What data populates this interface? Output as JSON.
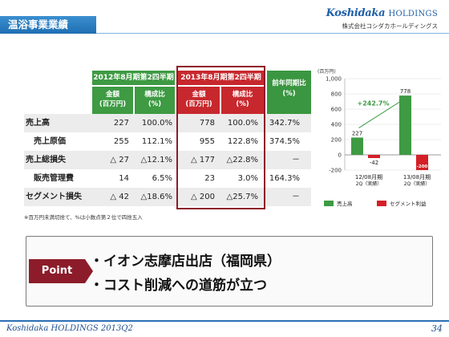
{
  "header": {
    "title": "温浴事業業績",
    "logo_main": "Koshidaka",
    "logo_holdings": "HOLDINGS",
    "logo_sub": "株式会社コシダカホールディングス"
  },
  "table": {
    "group_2012": "2012年8月期第2四半期",
    "group_2013": "2013年8月期第2四半期",
    "yoy_header": "前年同期比\n(%)",
    "amount_header": "金額\n(百万円)",
    "ratio_header": "構成比\n(%)",
    "rows": [
      {
        "label": "売上高",
        "a2012": "227",
        "r2012": "100.0%",
        "a2013": "778",
        "r2013": "100.0%",
        "yoy": "342.7%"
      },
      {
        "label": "売上原価",
        "a2012": "255",
        "r2012": "112.1%",
        "a2013": "955",
        "r2013": "122.8%",
        "yoy": "374.5%"
      },
      {
        "label": "売上総損失",
        "a2012": "△ 27",
        "r2012": "△12.1%",
        "a2013": "△ 177",
        "r2013": "△22.8%",
        "yoy": "－"
      },
      {
        "label": "販売管理費",
        "a2012": "14",
        "r2012": "6.5%",
        "a2013": "23",
        "r2013": "3.0%",
        "yoy": "164.3%"
      },
      {
        "label": "セグメント損失",
        "a2012": "△ 42",
        "r2012": "△18.6%",
        "a2013": "△ 200",
        "r2013": "△25.7%",
        "yoy": "－"
      }
    ],
    "note": "※百万円未満切捨て、%は小数点第２位で四捨五入"
  },
  "chart_data": {
    "type": "bar",
    "ylabel": "(百万円)",
    "ylim": [
      -200,
      1000
    ],
    "yticks": [
      "1,000",
      "800",
      "600",
      "400",
      "200",
      "0",
      "-200"
    ],
    "categories": [
      "12/08月期\n2Q（実績）",
      "13/08月期\n2Q（実績）"
    ],
    "series": [
      {
        "name": "売上高",
        "color": "#3e9a43",
        "values": [
          227,
          778
        ]
      },
      {
        "name": "セグメント利益",
        "color": "#d41f26",
        "values": [
          -42,
          -200
        ]
      }
    ],
    "value_labels": [
      "227",
      "778",
      "-42",
      "-200"
    ],
    "annotation": "+242.7%"
  },
  "point": {
    "tag": "Point",
    "line1": "・イオン志摩店出店（福岡県）",
    "line2": "・コスト削減への道筋が立つ"
  },
  "footer": {
    "brand": "Koshidaka HOLDINGS 2013Q2",
    "page": "34"
  }
}
